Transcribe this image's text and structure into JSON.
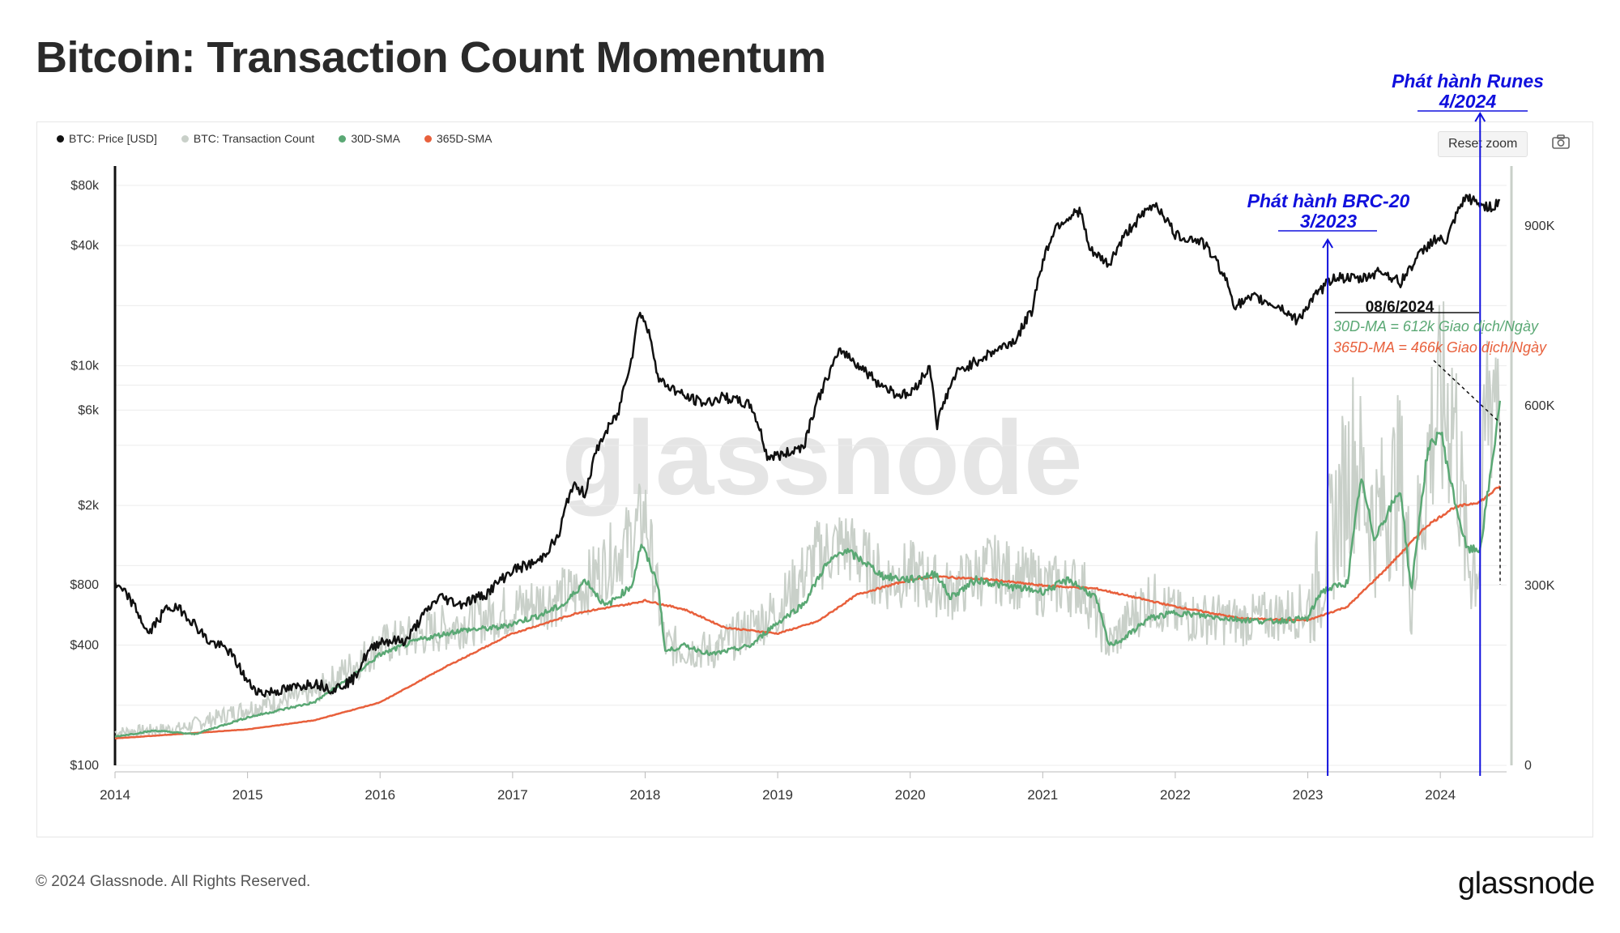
{
  "page": {
    "title": "Bitcoin: Transaction Count Momentum",
    "reset_zoom": "Reset zoom",
    "copyright": "© 2024 Glassnode. All Rights Reserved.",
    "brand": "glassnode",
    "watermark": "glassnode"
  },
  "colors": {
    "price": "#111111",
    "tx_count": "#c9d0c9",
    "sma30": "#5aa874",
    "sma365": "#e8603c",
    "annotation_blue": "#1010dd"
  },
  "chart_data": {
    "type": "line",
    "title": "Bitcoin: Transaction Count Momentum",
    "legend": [
      {
        "name": "BTC: Price [USD]",
        "color": "#111111"
      },
      {
        "name": "BTC: Transaction Count",
        "color": "#c9d0c9"
      },
      {
        "name": "30D-SMA",
        "color": "#5aa874"
      },
      {
        "name": "365D-SMA",
        "color": "#e8603c"
      }
    ],
    "x_ticks": [
      "2014",
      "2015",
      "2016",
      "2017",
      "2018",
      "2019",
      "2020",
      "2021",
      "2022",
      "2023",
      "2024"
    ],
    "x_range": [
      2014.0,
      2024.5
    ],
    "y_left": {
      "scale": "log",
      "range": [
        100,
        100000
      ],
      "ticks": [
        "$100",
        "$400",
        "$800",
        "$2k",
        "$6k",
        "$10k",
        "$40k",
        "$80k"
      ],
      "tick_values": [
        100,
        400,
        800,
        2000,
        6000,
        10000,
        40000,
        80000
      ]
    },
    "y_right": {
      "scale": "linear",
      "range": [
        0,
        1000000
      ],
      "ticks": [
        "0",
        "300K",
        "600K",
        "900K"
      ],
      "tick_values": [
        0,
        300000,
        600000,
        900000
      ]
    },
    "legend_position": "top-left",
    "grid": "horizontal",
    "series": [
      {
        "name": "BTC: Price [USD]",
        "axis": "left",
        "points": [
          [
            2014.0,
            800
          ],
          [
            2014.1,
            700
          ],
          [
            2014.25,
            450
          ],
          [
            2014.4,
            620
          ],
          [
            2014.5,
            600
          ],
          [
            2014.7,
            420
          ],
          [
            2014.85,
            380
          ],
          [
            2015.0,
            260
          ],
          [
            2015.1,
            230
          ],
          [
            2015.3,
            240
          ],
          [
            2015.5,
            260
          ],
          [
            2015.65,
            240
          ],
          [
            2015.8,
            270
          ],
          [
            2015.9,
            360
          ],
          [
            2016.0,
            420
          ],
          [
            2016.2,
            420
          ],
          [
            2016.45,
            700
          ],
          [
            2016.6,
            640
          ],
          [
            2016.8,
            720
          ],
          [
            2017.0,
            950
          ],
          [
            2017.2,
            1050
          ],
          [
            2017.35,
            1400
          ],
          [
            2017.45,
            2500
          ],
          [
            2017.55,
            2300
          ],
          [
            2017.65,
            4000
          ],
          [
            2017.8,
            5800
          ],
          [
            2017.9,
            11000
          ],
          [
            2017.96,
            19000
          ],
          [
            2018.05,
            13000
          ],
          [
            2018.1,
            8500
          ],
          [
            2018.3,
            7000
          ],
          [
            2018.45,
            6500
          ],
          [
            2018.6,
            7000
          ],
          [
            2018.8,
            6300
          ],
          [
            2018.92,
            3500
          ],
          [
            2019.05,
            3600
          ],
          [
            2019.2,
            4000
          ],
          [
            2019.35,
            8000
          ],
          [
            2019.48,
            12000
          ],
          [
            2019.6,
            10200
          ],
          [
            2019.75,
            8300
          ],
          [
            2019.9,
            7200
          ],
          [
            2020.0,
            7200
          ],
          [
            2020.15,
            9800
          ],
          [
            2020.2,
            5000
          ],
          [
            2020.35,
            9200
          ],
          [
            2020.6,
            11500
          ],
          [
            2020.8,
            13500
          ],
          [
            2020.92,
            19000
          ],
          [
            2021.0,
            33000
          ],
          [
            2021.1,
            50000
          ],
          [
            2021.28,
            60000
          ],
          [
            2021.35,
            38000
          ],
          [
            2021.5,
            32000
          ],
          [
            2021.65,
            48000
          ],
          [
            2021.85,
            65000
          ],
          [
            2022.0,
            45000
          ],
          [
            2022.2,
            42000
          ],
          [
            2022.35,
            30000
          ],
          [
            2022.45,
            20000
          ],
          [
            2022.6,
            22000
          ],
          [
            2022.8,
            19500
          ],
          [
            2022.92,
            16800
          ],
          [
            2023.05,
            22000
          ],
          [
            2023.2,
            28000
          ],
          [
            2023.4,
            27000
          ],
          [
            2023.55,
            30000
          ],
          [
            2023.7,
            26000
          ],
          [
            2023.83,
            35000
          ],
          [
            2023.95,
            43000
          ],
          [
            2024.05,
            42000
          ],
          [
            2024.15,
            62000
          ],
          [
            2024.2,
            70000
          ],
          [
            2024.3,
            64000
          ],
          [
            2024.4,
            62000
          ],
          [
            2024.45,
            68000
          ]
        ]
      },
      {
        "name": "BTC: Transaction Count",
        "axis": "right",
        "points": [
          [
            2014.0,
            55000
          ],
          [
            2014.5,
            62000
          ],
          [
            2015.0,
            95000
          ],
          [
            2015.5,
            120000
          ],
          [
            2016.0,
            200000
          ],
          [
            2016.5,
            230000
          ],
          [
            2017.0,
            260000
          ],
          [
            2017.5,
            290000
          ],
          [
            2017.9,
            380000
          ],
          [
            2018.0,
            420000
          ],
          [
            2018.15,
            200000
          ],
          [
            2018.5,
            190000
          ],
          [
            2018.8,
            230000
          ],
          [
            2019.0,
            260000
          ],
          [
            2019.3,
            350000
          ],
          [
            2019.5,
            370000
          ],
          [
            2019.8,
            310000
          ],
          [
            2020.0,
            320000
          ],
          [
            2020.3,
            290000
          ],
          [
            2020.6,
            330000
          ],
          [
            2021.0,
            300000
          ],
          [
            2021.3,
            300000
          ],
          [
            2021.5,
            200000
          ],
          [
            2021.8,
            280000
          ],
          [
            2022.0,
            250000
          ],
          [
            2022.5,
            240000
          ],
          [
            2023.0,
            260000
          ],
          [
            2023.1,
            320000
          ],
          [
            2023.35,
            520000
          ],
          [
            2023.5,
            400000
          ],
          [
            2023.7,
            480000
          ],
          [
            2023.78,
            300000
          ],
          [
            2023.95,
            580000
          ],
          [
            2024.1,
            600000
          ],
          [
            2024.2,
            340000
          ],
          [
            2024.3,
            350000
          ],
          [
            2024.35,
            600000
          ],
          [
            2024.45,
            700000
          ]
        ]
      },
      {
        "name": "30D-SMA",
        "axis": "right",
        "points": [
          [
            2014.0,
            48000
          ],
          [
            2014.3,
            58000
          ],
          [
            2014.6,
            52000
          ],
          [
            2015.0,
            80000
          ],
          [
            2015.5,
            105000
          ],
          [
            2015.8,
            150000
          ],
          [
            2016.0,
            185000
          ],
          [
            2016.3,
            210000
          ],
          [
            2016.6,
            225000
          ],
          [
            2016.9,
            230000
          ],
          [
            2017.2,
            250000
          ],
          [
            2017.4,
            270000
          ],
          [
            2017.55,
            310000
          ],
          [
            2017.7,
            265000
          ],
          [
            2017.9,
            300000
          ],
          [
            2017.97,
            370000
          ],
          [
            2018.1,
            300000
          ],
          [
            2018.15,
            190000
          ],
          [
            2018.3,
            200000
          ],
          [
            2018.5,
            185000
          ],
          [
            2018.8,
            200000
          ],
          [
            2018.95,
            230000
          ],
          [
            2019.2,
            270000
          ],
          [
            2019.35,
            330000
          ],
          [
            2019.5,
            360000
          ],
          [
            2019.65,
            340000
          ],
          [
            2019.8,
            315000
          ],
          [
            2020.0,
            310000
          ],
          [
            2020.2,
            320000
          ],
          [
            2020.3,
            280000
          ],
          [
            2020.5,
            310000
          ],
          [
            2020.7,
            300000
          ],
          [
            2021.0,
            290000
          ],
          [
            2021.2,
            310000
          ],
          [
            2021.4,
            280000
          ],
          [
            2021.5,
            200000
          ],
          [
            2021.6,
            210000
          ],
          [
            2021.8,
            245000
          ],
          [
            2022.0,
            255000
          ],
          [
            2022.4,
            245000
          ],
          [
            2022.7,
            240000
          ],
          [
            2023.0,
            245000
          ],
          [
            2023.1,
            290000
          ],
          [
            2023.3,
            305000
          ],
          [
            2023.4,
            480000
          ],
          [
            2023.5,
            380000
          ],
          [
            2023.7,
            460000
          ],
          [
            2023.78,
            290000
          ],
          [
            2023.9,
            520000
          ],
          [
            2024.0,
            560000
          ],
          [
            2024.1,
            450000
          ],
          [
            2024.2,
            360000
          ],
          [
            2024.3,
            360000
          ],
          [
            2024.4,
            520000
          ],
          [
            2024.45,
            612000
          ]
        ]
      },
      {
        "name": "365D-SMA",
        "axis": "right",
        "points": [
          [
            2014.0,
            45000
          ],
          [
            2015.0,
            60000
          ],
          [
            2015.5,
            75000
          ],
          [
            2016.0,
            105000
          ],
          [
            2016.5,
            165000
          ],
          [
            2017.0,
            220000
          ],
          [
            2017.5,
            255000
          ],
          [
            2017.9,
            270000
          ],
          [
            2018.0,
            275000
          ],
          [
            2018.3,
            260000
          ],
          [
            2018.6,
            230000
          ],
          [
            2019.0,
            220000
          ],
          [
            2019.3,
            240000
          ],
          [
            2019.6,
            285000
          ],
          [
            2020.0,
            310000
          ],
          [
            2020.2,
            315000
          ],
          [
            2020.6,
            310000
          ],
          [
            2021.0,
            300000
          ],
          [
            2021.4,
            295000
          ],
          [
            2021.7,
            280000
          ],
          [
            2022.0,
            265000
          ],
          [
            2022.5,
            245000
          ],
          [
            2023.0,
            242000
          ],
          [
            2023.3,
            265000
          ],
          [
            2023.6,
            330000
          ],
          [
            2023.9,
            400000
          ],
          [
            2024.1,
            430000
          ],
          [
            2024.3,
            440000
          ],
          [
            2024.45,
            466000
          ]
        ]
      }
    ],
    "annotations": [
      {
        "label": "Phát hành BRC-20",
        "date": "3/2023",
        "x": 2023.15
      },
      {
        "label": "Phát hành Runes",
        "date": "4/2024",
        "x": 2024.3
      }
    ],
    "callout": {
      "date": "08/6/2024",
      "sma30_text": "30D-MA = 612k Giao dịch/Ngày",
      "sma365_text": "365D-MA = 466k Giao dịch/Ngày"
    }
  }
}
